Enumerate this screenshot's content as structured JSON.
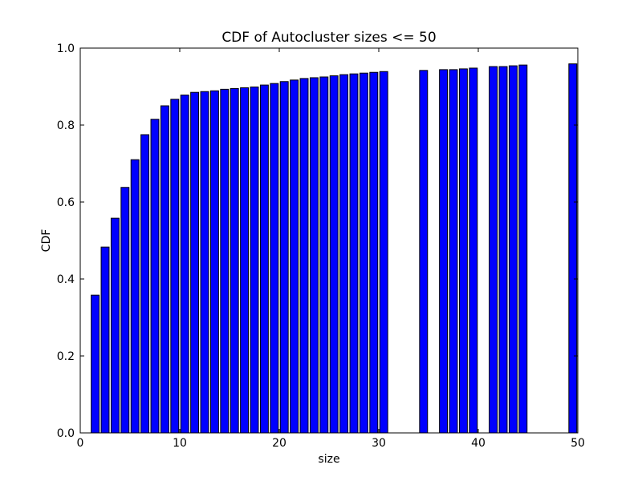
{
  "chart_data": {
    "type": "bar",
    "title": "CDF of Autocluster sizes <= 50",
    "xlabel": "size",
    "ylabel": "CDF",
    "xlim": [
      0,
      50
    ],
    "ylim": [
      0,
      1.0
    ],
    "x_ticks": [
      0,
      10,
      20,
      30,
      40,
      50
    ],
    "y_ticks": [
      0.0,
      0.2,
      0.4,
      0.6,
      0.8,
      1.0
    ],
    "grid": false,
    "bar_color": "#0000ff",
    "bar_edge_color": "#000000",
    "x": [
      1,
      2,
      3,
      4,
      5,
      6,
      7,
      8,
      9,
      10,
      11,
      12,
      13,
      14,
      15,
      16,
      17,
      18,
      19,
      20,
      21,
      22,
      23,
      24,
      25,
      26,
      27,
      28,
      29,
      30,
      34,
      36,
      37,
      38,
      39,
      41,
      42,
      43,
      44,
      49
    ],
    "values": [
      0.358,
      0.483,
      0.558,
      0.638,
      0.71,
      0.775,
      0.815,
      0.85,
      0.867,
      0.878,
      0.885,
      0.887,
      0.889,
      0.893,
      0.895,
      0.897,
      0.899,
      0.904,
      0.908,
      0.913,
      0.917,
      0.921,
      0.923,
      0.925,
      0.928,
      0.931,
      0.933,
      0.935,
      0.937,
      0.939,
      0.942,
      0.944,
      0.944,
      0.946,
      0.948,
      0.952,
      0.952,
      0.954,
      0.956,
      0.959
    ]
  }
}
